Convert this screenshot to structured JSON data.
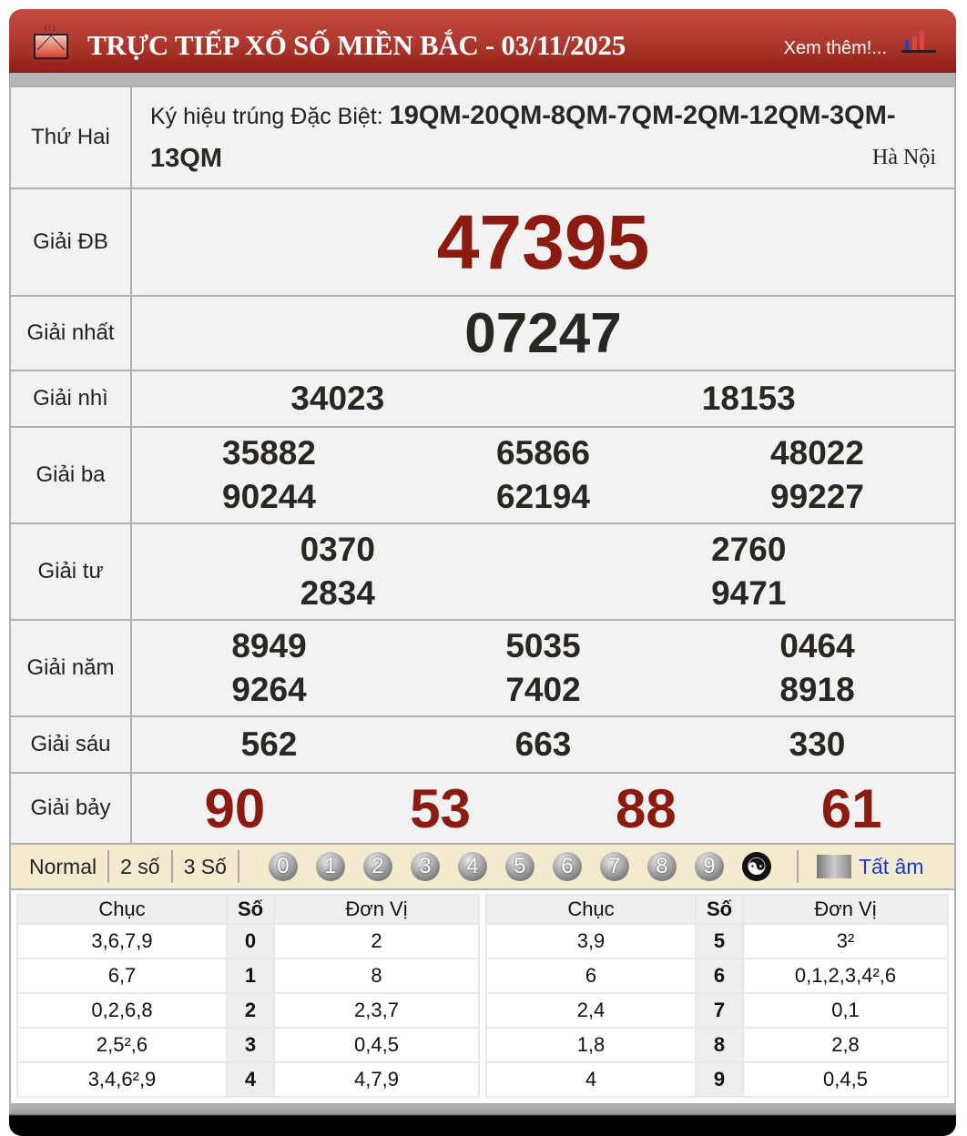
{
  "header": {
    "title": "TRỰC TIẾP XỔ SỐ MIỀN BẮC - 03/11/2025",
    "more": "Xem thêm!..."
  },
  "info": {
    "day": "Thứ Hai",
    "symbol_label": "Ký hiệu trúng Đặc Biệt: ",
    "symbol_value": "19QM-20QM-8QM-7QM-2QM-12QM-3QM-13QM",
    "place": "Hà Nội"
  },
  "prizes": {
    "db": {
      "label": "Giải ĐB",
      "values": [
        "47395"
      ]
    },
    "g1": {
      "label": "Giải nhất",
      "values": [
        "07247"
      ]
    },
    "g2": {
      "label": "Giải nhì",
      "values": [
        "34023",
        "18153"
      ]
    },
    "g3": {
      "label": "Giải ba",
      "values": [
        "35882",
        "65866",
        "48022",
        "90244",
        "62194",
        "99227"
      ]
    },
    "g4": {
      "label": "Giải tư",
      "values": [
        "0370",
        "2760",
        "2834",
        "9471"
      ]
    },
    "g5": {
      "label": "Giải năm",
      "values": [
        "8949",
        "5035",
        "0464",
        "9264",
        "7402",
        "8918"
      ]
    },
    "g6": {
      "label": "Giải sáu",
      "values": [
        "562",
        "663",
        "330"
      ]
    },
    "g7": {
      "label": "Giải bảy",
      "values": [
        "90",
        "53",
        "88",
        "61"
      ]
    }
  },
  "filter": {
    "options": [
      "Normal",
      "2 số",
      "3 Số"
    ],
    "digits": [
      "0",
      "1",
      "2",
      "3",
      "4",
      "5",
      "6",
      "7",
      "8",
      "9"
    ],
    "yin_yang": "☯",
    "tat_am": "Tất âm"
  },
  "loto": {
    "headers": [
      "Chục",
      "Số",
      "Đơn Vị"
    ],
    "left": [
      [
        "3,6,7,9",
        "0",
        "2"
      ],
      [
        "6,7",
        "1",
        "8"
      ],
      [
        "0,2,6,8",
        "2",
        "2,3,7"
      ],
      [
        "2,5²,6",
        "3",
        "0,4,5"
      ],
      [
        "3,4,6²,9",
        "4",
        "4,7,9"
      ]
    ],
    "right": [
      [
        "3,9",
        "5",
        "3²"
      ],
      [
        "6",
        "6",
        "0,1,2,3,4²,6"
      ],
      [
        "2,4",
        "7",
        "0,1"
      ],
      [
        "1,8",
        "8",
        "2,8"
      ],
      [
        "4",
        "9",
        "0,4,5"
      ]
    ]
  },
  "colors": {
    "header_red": "#b03a30",
    "prize_red": "#8b1a10",
    "link_blue": "#1a3ccc"
  }
}
